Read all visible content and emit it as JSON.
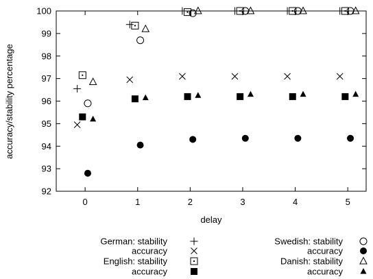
{
  "chart_data": {
    "type": "scatter",
    "xlabel": "delay",
    "ylabel": "accuracy/stability percentage",
    "xlim": [
      -0.55,
      5.35
    ],
    "ylim": [
      92,
      100
    ],
    "xticks": [
      "0",
      "1",
      "2",
      "3",
      "4",
      "5"
    ],
    "yticks": [
      "92",
      "93",
      "94",
      "95",
      "96",
      "97",
      "98",
      "99",
      "100"
    ],
    "grid": false,
    "legend_position": "bottom",
    "series": [
      {
        "name": "German: stability",
        "marker": "plus",
        "offset": -0.15,
        "x": [
          0,
          1,
          2,
          3,
          4,
          5
        ],
        "y": [
          96.55,
          99.4,
          100,
          100,
          100,
          100
        ]
      },
      {
        "name": "accuracy",
        "group": "German",
        "marker": "cross",
        "offset": -0.15,
        "x": [
          0,
          1,
          2,
          3,
          4,
          5
        ],
        "y": [
          94.95,
          96.95,
          97.1,
          97.1,
          97.1,
          97.1
        ]
      },
      {
        "name": "English: stability",
        "marker": "square-open",
        "offset": -0.05,
        "x": [
          0,
          1,
          2,
          3,
          4,
          5
        ],
        "y": [
          97.15,
          99.35,
          99.95,
          100,
          100,
          100
        ]
      },
      {
        "name": "accuracy",
        "group": "English",
        "marker": "square-filled",
        "offset": -0.05,
        "x": [
          0,
          1,
          2,
          3,
          4,
          5
        ],
        "y": [
          95.3,
          96.1,
          96.2,
          96.2,
          96.2,
          96.2
        ]
      },
      {
        "name": "Swedish: stability",
        "marker": "circle-open",
        "offset": 0.05,
        "x": [
          0,
          1,
          2,
          3,
          4,
          5
        ],
        "y": [
          95.9,
          98.7,
          99.9,
          100,
          100,
          100
        ]
      },
      {
        "name": "accuracy",
        "group": "Swedish",
        "marker": "circle-filled",
        "offset": 0.05,
        "x": [
          0,
          1,
          2,
          3,
          4,
          5
        ],
        "y": [
          92.8,
          94.05,
          94.3,
          94.35,
          94.35,
          94.35
        ]
      },
      {
        "name": "Danish: stability",
        "marker": "triangle-open",
        "offset": 0.15,
        "x": [
          0,
          1,
          2,
          3,
          4,
          5
        ],
        "y": [
          96.85,
          99.2,
          100,
          100,
          100,
          100
        ]
      },
      {
        "name": "accuracy",
        "group": "Danish",
        "marker": "triangle-filled",
        "offset": 0.15,
        "x": [
          0,
          1,
          2,
          3,
          4,
          5
        ],
        "y": [
          95.2,
          96.15,
          96.25,
          96.3,
          96.3,
          96.3
        ]
      }
    ]
  }
}
